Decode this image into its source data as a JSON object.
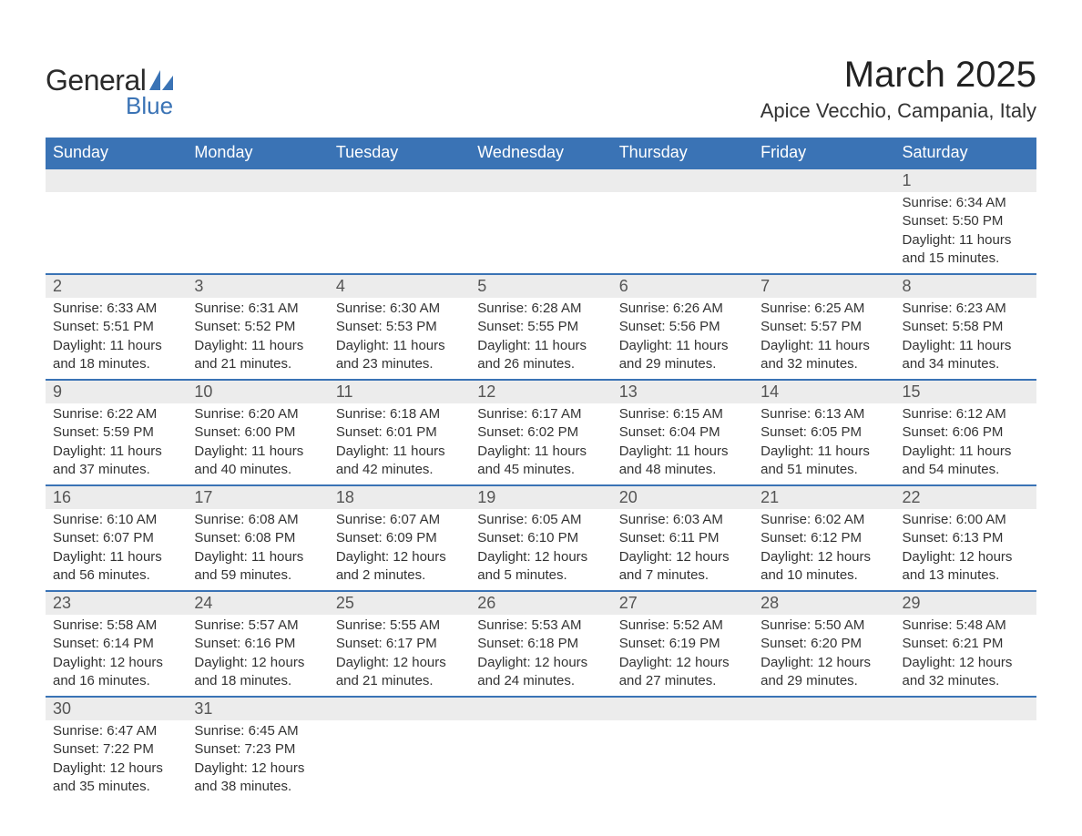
{
  "brand": {
    "word1": "General",
    "word2": "Blue"
  },
  "title": "March 2025",
  "location": "Apice Vecchio, Campania, Italy",
  "colors": {
    "header_bg": "#3a73b5",
    "header_text": "#ffffff",
    "daynum_bg": "#ececec",
    "daynum_text": "#555555",
    "body_text": "#333333",
    "row_separator": "#3a73b5",
    "page_bg": "#ffffff",
    "brand_dark": "#2b2b2b",
    "brand_blue": "#3a73b5"
  },
  "typography": {
    "title_fontsize_pt": 30,
    "location_fontsize_pt": 16,
    "header_fontsize_pt": 13,
    "daynum_fontsize_pt": 13,
    "detail_fontsize_pt": 11
  },
  "weekdays": [
    "Sunday",
    "Monday",
    "Tuesday",
    "Wednesday",
    "Thursday",
    "Friday",
    "Saturday"
  ],
  "labels": {
    "sunrise": "Sunrise:",
    "sunset": "Sunset:",
    "daylight": "Daylight:"
  },
  "weeks": [
    [
      null,
      null,
      null,
      null,
      null,
      null,
      {
        "n": "1",
        "sr": "6:34 AM",
        "ss": "5:50 PM",
        "dl": "11 hours and 15 minutes."
      }
    ],
    [
      {
        "n": "2",
        "sr": "6:33 AM",
        "ss": "5:51 PM",
        "dl": "11 hours and 18 minutes."
      },
      {
        "n": "3",
        "sr": "6:31 AM",
        "ss": "5:52 PM",
        "dl": "11 hours and 21 minutes."
      },
      {
        "n": "4",
        "sr": "6:30 AM",
        "ss": "5:53 PM",
        "dl": "11 hours and 23 minutes."
      },
      {
        "n": "5",
        "sr": "6:28 AM",
        "ss": "5:55 PM",
        "dl": "11 hours and 26 minutes."
      },
      {
        "n": "6",
        "sr": "6:26 AM",
        "ss": "5:56 PM",
        "dl": "11 hours and 29 minutes."
      },
      {
        "n": "7",
        "sr": "6:25 AM",
        "ss": "5:57 PM",
        "dl": "11 hours and 32 minutes."
      },
      {
        "n": "8",
        "sr": "6:23 AM",
        "ss": "5:58 PM",
        "dl": "11 hours and 34 minutes."
      }
    ],
    [
      {
        "n": "9",
        "sr": "6:22 AM",
        "ss": "5:59 PM",
        "dl": "11 hours and 37 minutes."
      },
      {
        "n": "10",
        "sr": "6:20 AM",
        "ss": "6:00 PM",
        "dl": "11 hours and 40 minutes."
      },
      {
        "n": "11",
        "sr": "6:18 AM",
        "ss": "6:01 PM",
        "dl": "11 hours and 42 minutes."
      },
      {
        "n": "12",
        "sr": "6:17 AM",
        "ss": "6:02 PM",
        "dl": "11 hours and 45 minutes."
      },
      {
        "n": "13",
        "sr": "6:15 AM",
        "ss": "6:04 PM",
        "dl": "11 hours and 48 minutes."
      },
      {
        "n": "14",
        "sr": "6:13 AM",
        "ss": "6:05 PM",
        "dl": "11 hours and 51 minutes."
      },
      {
        "n": "15",
        "sr": "6:12 AM",
        "ss": "6:06 PM",
        "dl": "11 hours and 54 minutes."
      }
    ],
    [
      {
        "n": "16",
        "sr": "6:10 AM",
        "ss": "6:07 PM",
        "dl": "11 hours and 56 minutes."
      },
      {
        "n": "17",
        "sr": "6:08 AM",
        "ss": "6:08 PM",
        "dl": "11 hours and 59 minutes."
      },
      {
        "n": "18",
        "sr": "6:07 AM",
        "ss": "6:09 PM",
        "dl": "12 hours and 2 minutes."
      },
      {
        "n": "19",
        "sr": "6:05 AM",
        "ss": "6:10 PM",
        "dl": "12 hours and 5 minutes."
      },
      {
        "n": "20",
        "sr": "6:03 AM",
        "ss": "6:11 PM",
        "dl": "12 hours and 7 minutes."
      },
      {
        "n": "21",
        "sr": "6:02 AM",
        "ss": "6:12 PM",
        "dl": "12 hours and 10 minutes."
      },
      {
        "n": "22",
        "sr": "6:00 AM",
        "ss": "6:13 PM",
        "dl": "12 hours and 13 minutes."
      }
    ],
    [
      {
        "n": "23",
        "sr": "5:58 AM",
        "ss": "6:14 PM",
        "dl": "12 hours and 16 minutes."
      },
      {
        "n": "24",
        "sr": "5:57 AM",
        "ss": "6:16 PM",
        "dl": "12 hours and 18 minutes."
      },
      {
        "n": "25",
        "sr": "5:55 AM",
        "ss": "6:17 PM",
        "dl": "12 hours and 21 minutes."
      },
      {
        "n": "26",
        "sr": "5:53 AM",
        "ss": "6:18 PM",
        "dl": "12 hours and 24 minutes."
      },
      {
        "n": "27",
        "sr": "5:52 AM",
        "ss": "6:19 PM",
        "dl": "12 hours and 27 minutes."
      },
      {
        "n": "28",
        "sr": "5:50 AM",
        "ss": "6:20 PM",
        "dl": "12 hours and 29 minutes."
      },
      {
        "n": "29",
        "sr": "5:48 AM",
        "ss": "6:21 PM",
        "dl": "12 hours and 32 minutes."
      }
    ],
    [
      {
        "n": "30",
        "sr": "6:47 AM",
        "ss": "7:22 PM",
        "dl": "12 hours and 35 minutes."
      },
      {
        "n": "31",
        "sr": "6:45 AM",
        "ss": "7:23 PM",
        "dl": "12 hours and 38 minutes."
      },
      null,
      null,
      null,
      null,
      null
    ]
  ]
}
